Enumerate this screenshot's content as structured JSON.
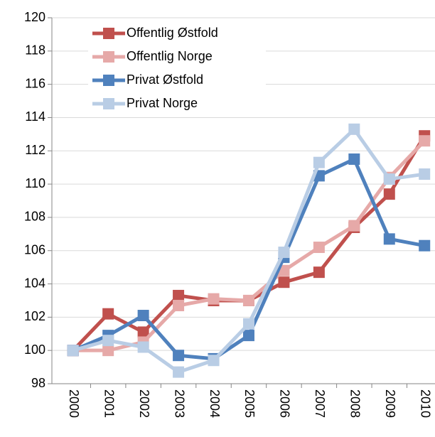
{
  "chart_data": {
    "type": "line",
    "categories": [
      "2000",
      "2001",
      "2002",
      "2003",
      "2004",
      "2005",
      "2006",
      "2007",
      "2008",
      "2009",
      "2010"
    ],
    "series": [
      {
        "name": "Offentlig Østfold",
        "color": "#c0504d",
        "values": [
          100,
          102.2,
          101.1,
          103.3,
          103.0,
          103.0,
          104.1,
          104.7,
          107.4,
          109.4,
          112.9
        ]
      },
      {
        "name": "Offentlig Norge",
        "color": "#e6a9a8",
        "values": [
          100,
          100.0,
          100.5,
          102.7,
          103.1,
          103.0,
          104.8,
          106.2,
          107.5,
          110.4,
          112.6
        ]
      },
      {
        "name": "Privat Østfold",
        "color": "#4f81bd",
        "values": [
          100,
          100.9,
          102.1,
          99.7,
          99.5,
          100.9,
          105.6,
          110.5,
          111.5,
          106.7,
          106.3
        ]
      },
      {
        "name": "Privat Norge",
        "color": "#b9cde5",
        "values": [
          100,
          100.6,
          100.2,
          98.7,
          99.4,
          101.6,
          105.9,
          111.3,
          113.3,
          110.3,
          110.6
        ]
      }
    ],
    "ylim": [
      98,
      120
    ],
    "yticks": [
      98,
      100,
      102,
      104,
      106,
      108,
      110,
      112,
      114,
      116,
      118,
      120
    ],
    "grid": true,
    "legend": "upper left"
  }
}
